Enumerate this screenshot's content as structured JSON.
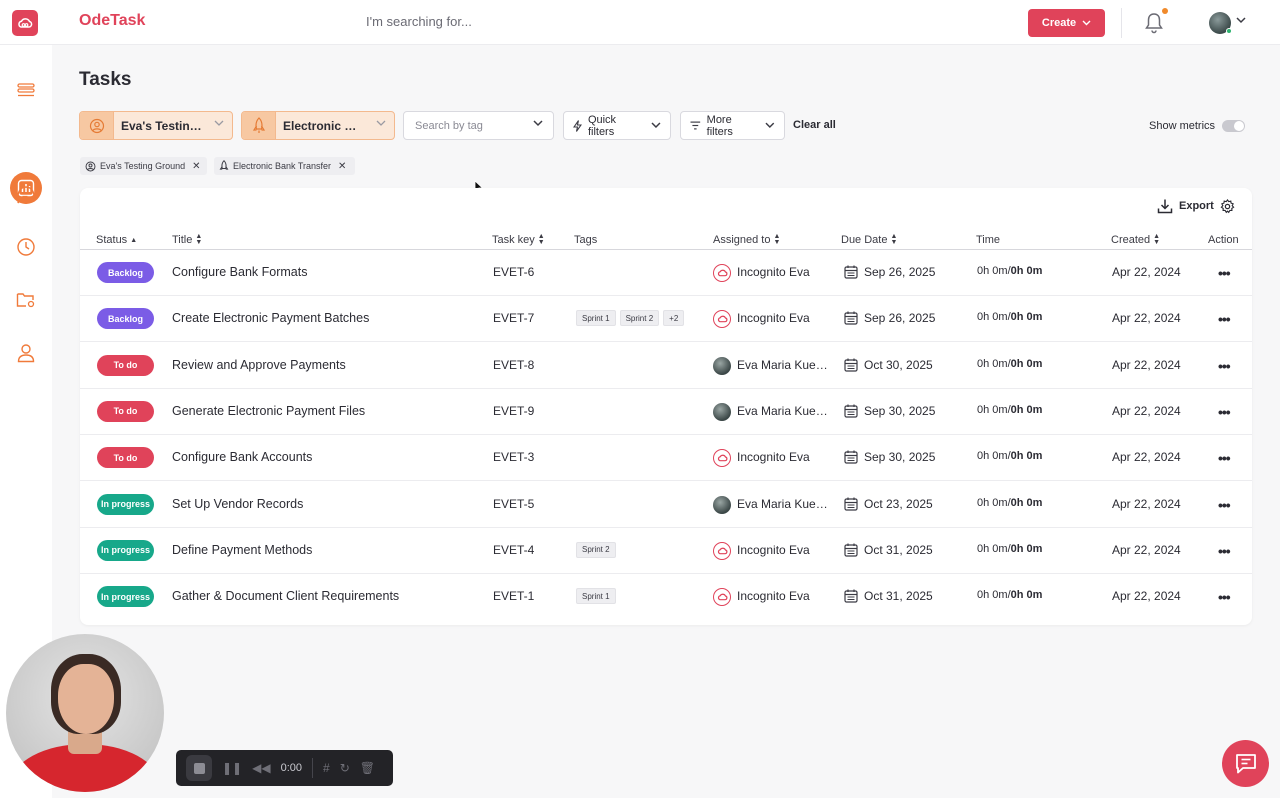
{
  "app": {
    "name": "OdeTask"
  },
  "header": {
    "search_placeholder": "I'm searching for...",
    "create_label": "Create"
  },
  "page": {
    "title": "Tasks"
  },
  "filters": {
    "organization": "Eva's Testing Ground",
    "project": "Electronic Bank Transfer",
    "tag_placeholder": "Search by tag",
    "quick_filters": "Quick filters",
    "more_filters": "More filters",
    "clear_all": "Clear all",
    "show_metrics": "Show metrics",
    "show_metrics_enabled": false,
    "chips": [
      "Eva's Testing Ground",
      "Electronic Bank Transfer"
    ]
  },
  "toolbar": {
    "export": "Export"
  },
  "table": {
    "columns": [
      "Status",
      "Title",
      "Task key",
      "Tags",
      "Assigned to",
      "Due Date",
      "Time",
      "Created",
      "Action"
    ],
    "rows": [
      {
        "status": "Backlog",
        "title": "Configure Bank Formats",
        "key": "EVET-6",
        "tags": [],
        "assignee": "Incognito Eva",
        "due": "Sep 26, 2025",
        "time_a": "0h 0m/",
        "time_b": "0h 0m",
        "created": "Apr 22, 2024"
      },
      {
        "status": "Backlog",
        "title": "Create Electronic Payment Batches",
        "key": "EVET-7",
        "tags": [
          "Sprint 1",
          "Sprint 2",
          "+2"
        ],
        "assignee": "Incognito Eva",
        "due": "Sep 26, 2025",
        "time_a": "0h 0m/",
        "time_b": "0h 0m",
        "created": "Apr 22, 2024"
      },
      {
        "status": "To do",
        "title": "Review and Approve Payments",
        "key": "EVET-8",
        "tags": [],
        "assignee": "Eva Maria Kuehn...",
        "due": "Oct 30, 2025",
        "time_a": "0h 0m/",
        "time_b": "0h 0m",
        "created": "Apr 22, 2024"
      },
      {
        "status": "To do",
        "title": "Generate Electronic Payment Files",
        "key": "EVET-9",
        "tags": [],
        "assignee": "Eva Maria Kuehn...",
        "due": "Sep 30, 2025",
        "time_a": "0h 0m/",
        "time_b": "0h 0m",
        "created": "Apr 22, 2024"
      },
      {
        "status": "To do",
        "title": "Configure Bank Accounts",
        "key": "EVET-3",
        "tags": [],
        "assignee": "Incognito Eva",
        "due": "Sep 30, 2025",
        "time_a": "0h 0m/",
        "time_b": "0h 0m",
        "created": "Apr 22, 2024"
      },
      {
        "status": "In progress",
        "title": "Set Up Vendor Records",
        "key": "EVET-5",
        "tags": [],
        "assignee": "Eva Maria Kuehn...",
        "due": "Oct 23, 2025",
        "time_a": "0h 0m/",
        "time_b": "0h 0m",
        "created": "Apr 22, 2024"
      },
      {
        "status": "In progress",
        "title": "Define Payment Methods",
        "key": "EVET-4",
        "tags": [
          "Sprint 2"
        ],
        "assignee": "Incognito Eva",
        "due": "Oct 31, 2025",
        "time_a": "0h 0m/",
        "time_b": "0h 0m",
        "created": "Apr 22, 2024"
      },
      {
        "status": "In progress",
        "title": "Gather & Document Client Requirements",
        "key": "EVET-1",
        "tags": [
          "Sprint 1"
        ],
        "assignee": "Incognito Eva",
        "due": "Oct 31, 2025",
        "time_a": "0h 0m/",
        "time_b": "0h 0m",
        "created": "Apr 22, 2024"
      }
    ]
  },
  "status_colors": {
    "Backlog": "#7b5ce6",
    "To do": "#e0435a",
    "In progress": "#17a88a"
  },
  "recorder": {
    "time": "0:00"
  },
  "colors": {
    "brand": "#e0435a",
    "accent": "#f07a3a"
  }
}
